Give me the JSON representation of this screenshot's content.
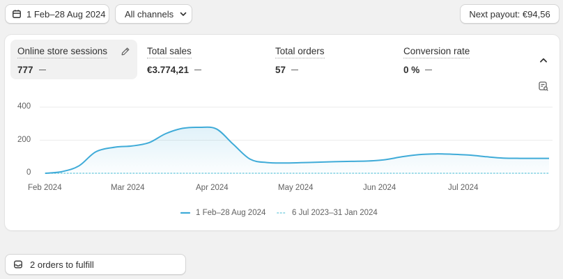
{
  "toolbar": {
    "date_range": "1 Feb–28 Aug 2024",
    "channel": "All channels",
    "payout": "Next payout: €94,56"
  },
  "metrics": [
    {
      "label": "Online store sessions",
      "value": "777"
    },
    {
      "label": "Total sales",
      "value": "€3.774,21"
    },
    {
      "label": "Total orders",
      "value": "57"
    },
    {
      "label": "Conversion rate",
      "value": "0 %"
    }
  ],
  "colors": {
    "current": "#3fabd8",
    "previous": "#7ccfe0"
  },
  "chart_data": {
    "type": "line",
    "y_ticks": [
      "400",
      "200",
      "0"
    ],
    "ylim": [
      0,
      400
    ],
    "x_ticks": [
      "Feb 2024",
      "Mar 2024",
      "Apr 2024",
      "May 2024",
      "Jun 2024",
      "Jul 2024"
    ],
    "series": [
      {
        "name": "1 Feb–28 Aug 2024",
        "style": "solid",
        "x": [
          "2024-02-01",
          "2024-02-08",
          "2024-02-15",
          "2024-02-22",
          "2024-03-01",
          "2024-03-08",
          "2024-03-15",
          "2024-03-22",
          "2024-03-29",
          "2024-04-05",
          "2024-04-12",
          "2024-04-19",
          "2024-04-26",
          "2024-05-03",
          "2024-05-10",
          "2024-05-17",
          "2024-05-24",
          "2024-05-31",
          "2024-06-07",
          "2024-06-14",
          "2024-06-21",
          "2024-06-28",
          "2024-07-05",
          "2024-07-12",
          "2024-07-19",
          "2024-07-26",
          "2024-08-02",
          "2024-08-09",
          "2024-08-16",
          "2024-08-28"
        ],
        "values": [
          0,
          10,
          45,
          130,
          158,
          165,
          185,
          240,
          272,
          278,
          268,
          175,
          85,
          65,
          62,
          64,
          67,
          70,
          72,
          74,
          82,
          100,
          113,
          117,
          115,
          110,
          100,
          92,
          90,
          90
        ]
      },
      {
        "name": "6 Jul 2023–31 Jan 2024",
        "style": "dotted",
        "x": [
          "2024-02-01",
          "2024-08-28"
        ],
        "values": [
          0,
          0
        ]
      }
    ]
  },
  "fulfill": {
    "label": "2 orders to fulfill"
  }
}
